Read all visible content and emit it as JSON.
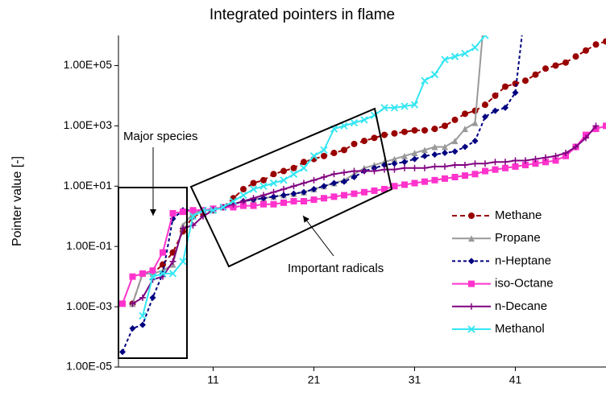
{
  "chart_data": {
    "type": "line",
    "title": "Integrated pointers in flame",
    "y_label": "Pointer value [-]",
    "log_y": true,
    "ylim": [
      1e-05,
      1000000
    ],
    "yticks": [
      {
        "value": 1e-05,
        "label": "1.00E-05"
      },
      {
        "value": 0.001,
        "label": "1.00E-03"
      },
      {
        "value": 0.1,
        "label": "1.00E-01"
      },
      {
        "value": 10,
        "label": "1.00E+01"
      },
      {
        "value": 1000,
        "label": "1.00E+03"
      },
      {
        "value": 100000,
        "label": "1.00E+05"
      }
    ],
    "xlim": [
      1.6,
      50
    ],
    "xticks": [
      11,
      21,
      31,
      41
    ],
    "legend": "right",
    "annotations": [
      "Major species",
      "Important radicals"
    ],
    "x": [
      2,
      3,
      4,
      5,
      6,
      7,
      8,
      9,
      10,
      11,
      12,
      13,
      14,
      15,
      16,
      17,
      18,
      19,
      20,
      21,
      22,
      23,
      24,
      25,
      26,
      27,
      28,
      29,
      30,
      31,
      32,
      33,
      34,
      35,
      36,
      37,
      38,
      39,
      40,
      41,
      42,
      43,
      44,
      45,
      46,
      47,
      48,
      49,
      50
    ],
    "series": [
      {
        "name": "Methane",
        "color": "#990000",
        "marker": "circle",
        "dash": "6,4",
        "values": [
          null,
          0.00126,
          0.0126,
          0.0126,
          0.0251,
          0.0631,
          0.316,
          1,
          1.26,
          1.58,
          2,
          3.98,
          7.94,
          12.6,
          15.8,
          25.1,
          31.6,
          39.8,
          63.1,
          79.4,
          100,
          126,
          158,
          251,
          316,
          398,
          501,
          562,
          631,
          708,
          708,
          794,
          1000,
          1580,
          2510,
          3160,
          5010,
          10000,
          20000,
          25100,
          31600,
          50100,
          79400,
          100000,
          126000,
          200000,
          316000,
          501000,
          631000
        ]
      },
      {
        "name": "Propane",
        "color": "#999999",
        "marker": "triangle",
        "dash": "none",
        "values": [
          null,
          0.00126,
          0.0126,
          0.0126,
          0.0158,
          0.0251,
          0.501,
          1.26,
          1.58,
          1.58,
          2,
          2.51,
          3.16,
          3.55,
          3.98,
          4.47,
          5.01,
          5.62,
          6.31,
          7.94,
          10,
          12.6,
          15.8,
          25.1,
          39.8,
          50.1,
          63.1,
          79.4,
          100,
          126,
          158,
          200,
          200,
          316,
          794,
          1260,
          10000000,
          null,
          null,
          null,
          null,
          null,
          null,
          null,
          null,
          null,
          null,
          null,
          null
        ]
      },
      {
        "name": "n-Heptane",
        "color": "#000080",
        "marker": "diamond",
        "dash": "4,3",
        "values": [
          3.16e-05,
          0.000191,
          0.000251,
          0.002,
          0.0126,
          0.832,
          1.58,
          1.58,
          1.58,
          1.78,
          2,
          2.51,
          3.16,
          3.55,
          3.98,
          4.47,
          5.01,
          5.62,
          6.31,
          7.94,
          10,
          12.6,
          14.1,
          20,
          31.6,
          39.8,
          50.1,
          56.2,
          63.1,
          79.4,
          100,
          112,
          126,
          141,
          200,
          316,
          2000,
          3160,
          3980,
          12600,
          10000000,
          null,
          null,
          null,
          null,
          null,
          null,
          null,
          null
        ]
      },
      {
        "name": "iso-Octane",
        "color": "#ff33cc",
        "marker": "square",
        "dash": "none",
        "values": [
          0.00126,
          0.01,
          0.0126,
          0.0158,
          0.0631,
          1.26,
          1.41,
          1.58,
          1.58,
          1.78,
          2,
          2,
          2.24,
          2.24,
          2.51,
          2.51,
          2.82,
          3.16,
          3.16,
          3.55,
          3.98,
          4.47,
          5.01,
          5.62,
          6.31,
          7.08,
          7.94,
          10,
          11.2,
          12.6,
          14.1,
          15.8,
          17.8,
          20,
          22.4,
          25.1,
          31.6,
          35.5,
          39.8,
          44.7,
          50.1,
          56.2,
          63.1,
          70.8,
          100,
          200,
          501,
          794,
          1000
        ]
      },
      {
        "name": "n-Decane",
        "color": "#800080",
        "marker": "plus",
        "dash": "none",
        "values": [
          null,
          0.00126,
          0.002,
          0.00794,
          0.01,
          0.0316,
          0.398,
          0.501,
          1,
          1.58,
          2,
          2.51,
          3.16,
          3.98,
          5.01,
          6.31,
          7.94,
          10,
          12.6,
          15.8,
          20,
          25.1,
          28.2,
          31.6,
          31.6,
          31.6,
          35.5,
          35.5,
          39.8,
          39.8,
          39.8,
          44.7,
          44.7,
          50.1,
          50.1,
          56.2,
          56.2,
          63.1,
          63.1,
          70.8,
          70.8,
          79.4,
          89.1,
          100,
          126,
          200,
          398,
          1000,
          null
        ]
      },
      {
        "name": "Methanol",
        "color": "#33e6f2",
        "marker": "x",
        "dash": "none",
        "values": [
          null,
          null,
          0.000501,
          0.01,
          0.0126,
          0.0126,
          0.0316,
          1,
          1.58,
          1.58,
          2,
          3.16,
          5.01,
          7.94,
          10,
          12.6,
          15.8,
          25.1,
          39.8,
          100,
          158,
          794,
          1000,
          1260,
          1580,
          2240,
          3980,
          3980,
          4470,
          5010,
          31600,
          50100,
          158000,
          200000,
          251000,
          398000,
          1000000,
          1580000,
          null,
          null,
          null,
          null,
          null,
          null,
          null,
          null,
          null,
          null,
          null
        ]
      }
    ]
  }
}
